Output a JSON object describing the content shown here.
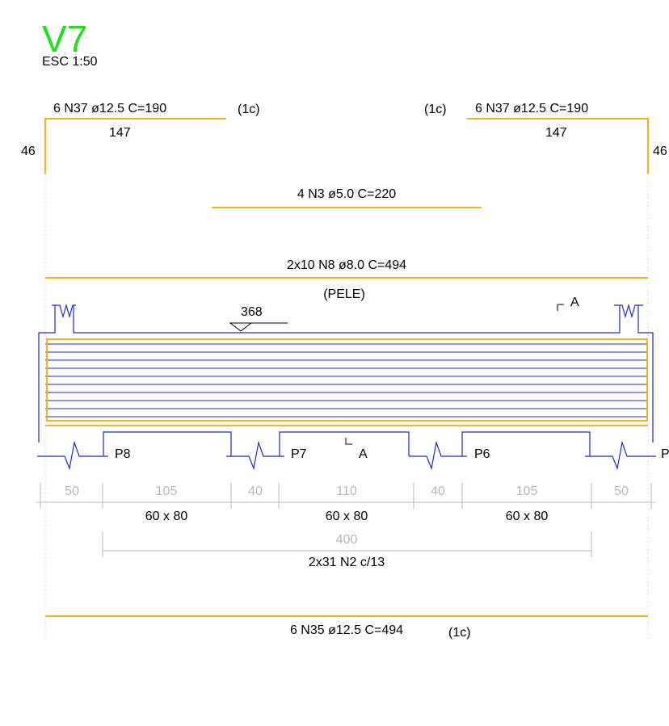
{
  "header": {
    "title": "V7",
    "scale": "ESC 1:50"
  },
  "colors": {
    "title": "#22dd22",
    "rebar": "#f5b21c",
    "concrete": "#1a2bd0",
    "dimension": "#b8b8b8",
    "text": "#000000"
  },
  "top_bars": {
    "left": {
      "label": "6 N37 ø12.5  C=190",
      "count": "(1c)",
      "length": "147",
      "hook": "46"
    },
    "right": {
      "label": "6 N37 ø12.5  C=190",
      "count": "(1c)",
      "length": "147",
      "hook": "46"
    }
  },
  "bar_n3": {
    "label": "4 N3 ø5.0  C=220"
  },
  "bar_n8": {
    "label": "2x10 N8 ø8.0  C=494",
    "note": "(PELE)"
  },
  "level": {
    "value": "368"
  },
  "section": {
    "label": "A"
  },
  "pillars": [
    {
      "label": "P8"
    },
    {
      "label": "P7"
    },
    {
      "label": "P6"
    },
    {
      "label": "P"
    }
  ],
  "spans": [
    "50",
    "105",
    "40",
    "110",
    "40",
    "105",
    "50"
  ],
  "pillar_sections": [
    "60 x 80",
    "60 x 80",
    "60 x 80"
  ],
  "stirrups": {
    "length": "400",
    "label": "2x31 N2 c/13"
  },
  "bottom_bar": {
    "label": "6 N35 ø12.5  C=494",
    "count": "(1c)"
  }
}
